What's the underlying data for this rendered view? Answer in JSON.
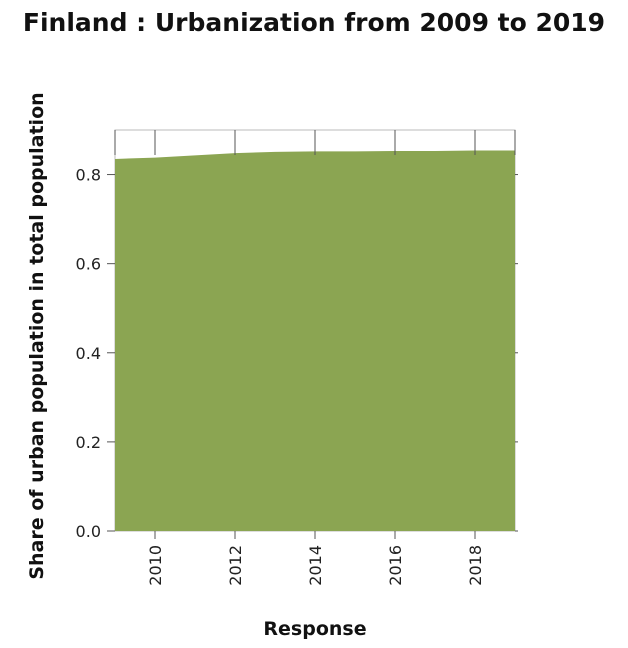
{
  "chart_data": {
    "type": "area",
    "title": "Finland : Urbanization from 2009 to 2019",
    "xlabel": "Response",
    "ylabel": "Share of urban population in total population",
    "x": [
      2009,
      2010,
      2011,
      2012,
      2013,
      2014,
      2015,
      2016,
      2017,
      2018,
      2019
    ],
    "series": [
      {
        "values": [
          0.835,
          0.838,
          0.843,
          0.848,
          0.851,
          0.852,
          0.852,
          0.853,
          0.853,
          0.854,
          0.854
        ]
      }
    ],
    "xlim": [
      2009,
      2019
    ],
    "ylim": [
      0,
      0.9
    ],
    "xticks": [
      2010,
      2012,
      2014,
      2016,
      2018
    ],
    "yticks": [
      0.0,
      0.2,
      0.4,
      0.6,
      0.8
    ],
    "ytick_labels": [
      "0.0",
      "0.2",
      "0.4",
      "0.6",
      "0.8"
    ],
    "grid": false,
    "fill_color": "#8ba552"
  }
}
